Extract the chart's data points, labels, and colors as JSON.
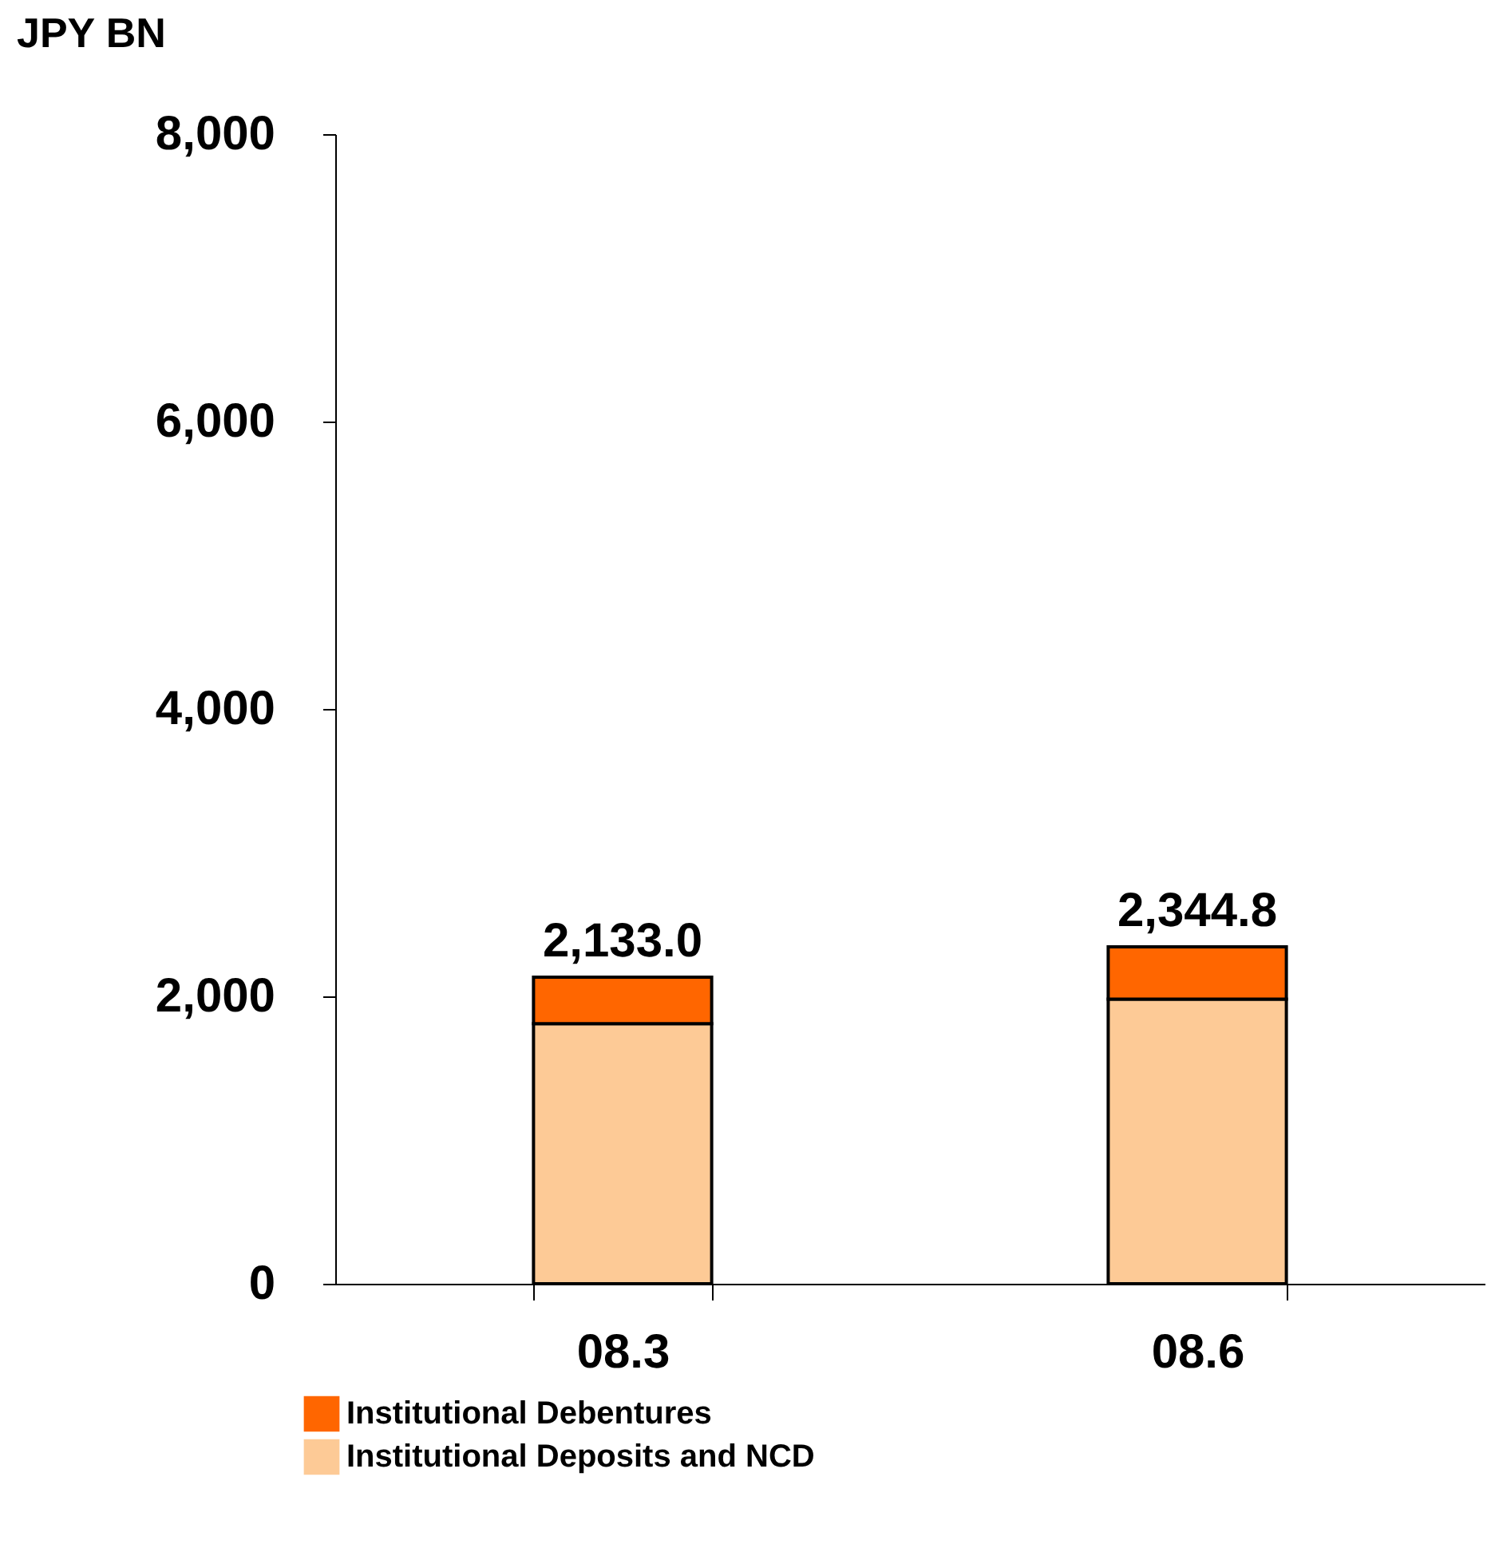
{
  "chart_data": {
    "type": "bar",
    "stacked": true,
    "ylabel": "JPY BN",
    "categories": [
      "08.3",
      "08.6"
    ],
    "series": [
      {
        "name": "Institutional Deposits and NCD",
        "color": "#fdca96",
        "values": [
          1810,
          1980
        ]
      },
      {
        "name": "Institutional Debentures",
        "color": "#ff6600",
        "values": [
          323,
          364.8
        ]
      }
    ],
    "totals": [
      "2,133.0",
      "2,344.8"
    ],
    "ylim": [
      0,
      8000
    ],
    "yticks": [
      {
        "value": 0,
        "label": "0"
      },
      {
        "value": 2000,
        "label": "2,000"
      },
      {
        "value": 4000,
        "label": "4,000"
      },
      {
        "value": 6000,
        "label": "6,000"
      },
      {
        "value": 8000,
        "label": "8,000"
      }
    ],
    "grid": false,
    "legend": "bottom left"
  }
}
